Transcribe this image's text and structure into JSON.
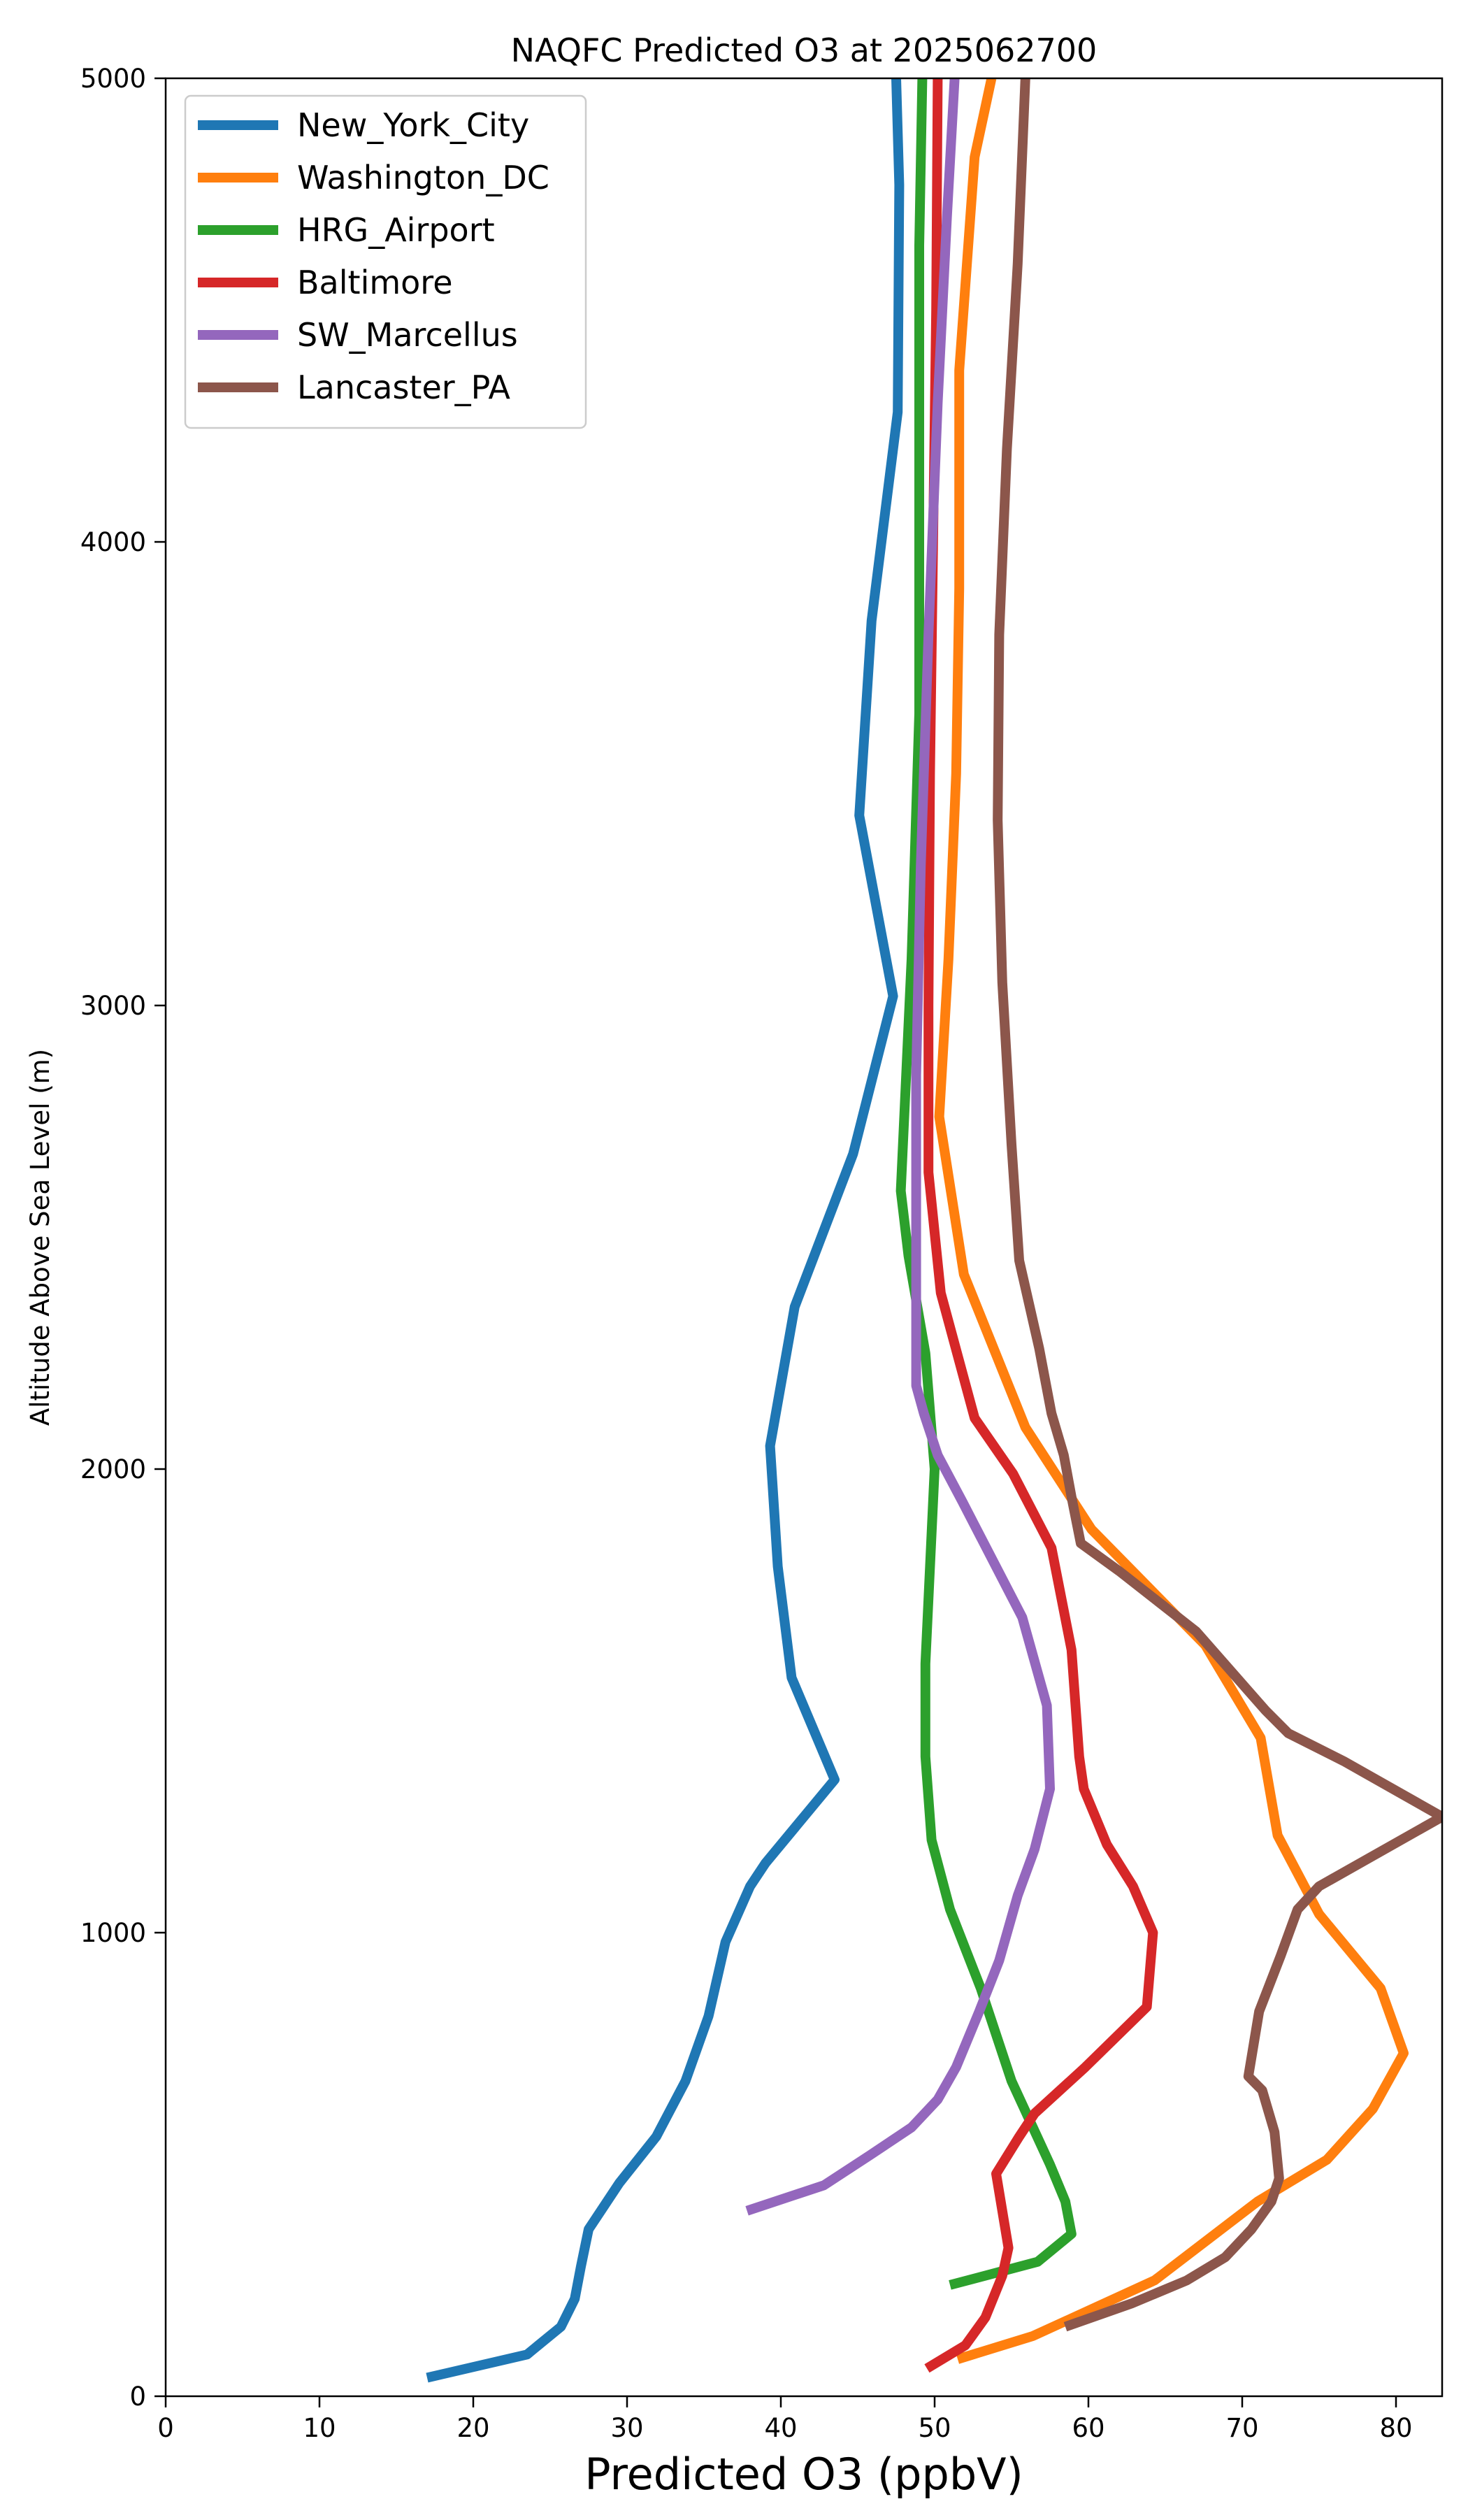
{
  "chart_data": {
    "type": "line",
    "title": "NAQFC Predicted O3 at 2025062700",
    "xlabel": "Predicted O3 (ppbV)",
    "ylabel": "Altitude Above Sea Level (m)",
    "xlim": [
      0,
      83
    ],
    "ylim": [
      0,
      5000
    ],
    "xticks": [
      0,
      10,
      20,
      30,
      40,
      50,
      60,
      70,
      80
    ],
    "yticks": [
      0,
      1000,
      2000,
      3000,
      4000,
      5000
    ],
    "grid": false,
    "legend_position": "top-left",
    "series": [
      {
        "name": "New_York_City",
        "color": "#1f77b4",
        "points": [
          [
            17,
            40
          ],
          [
            23.5,
            90
          ],
          [
            25.7,
            150
          ],
          [
            26.6,
            210
          ],
          [
            27,
            280
          ],
          [
            27.5,
            360
          ],
          [
            29.5,
            460
          ],
          [
            31.9,
            560
          ],
          [
            33.8,
            680
          ],
          [
            35.3,
            820
          ],
          [
            36.4,
            980
          ],
          [
            38,
            1100
          ],
          [
            39,
            1150
          ],
          [
            43.5,
            1330
          ],
          [
            40.7,
            1550
          ],
          [
            39.8,
            1790
          ],
          [
            39.3,
            2050
          ],
          [
            40.9,
            2350
          ],
          [
            44.7,
            2680
          ],
          [
            47.3,
            3020
          ],
          [
            45.1,
            3410
          ],
          [
            45.9,
            3830
          ],
          [
            47.6,
            4280
          ],
          [
            47.7,
            4770
          ],
          [
            47.5,
            5000
          ]
        ]
      },
      {
        "name": "Washington_DC",
        "color": "#ff7f0e",
        "points": [
          [
            51.5,
            80
          ],
          [
            56.4,
            130
          ],
          [
            64.3,
            250
          ],
          [
            71,
            420
          ],
          [
            75.5,
            510
          ],
          [
            78.5,
            620
          ],
          [
            80.5,
            740
          ],
          [
            79,
            880
          ],
          [
            75,
            1040
          ],
          [
            72.3,
            1210
          ],
          [
            71.2,
            1420
          ],
          [
            67.6,
            1620
          ],
          [
            60.2,
            1870
          ],
          [
            55.9,
            2090
          ],
          [
            51.9,
            2420
          ],
          [
            50.3,
            2760
          ],
          [
            50.9,
            3100
          ],
          [
            51.4,
            3500
          ],
          [
            51.6,
            3900
          ],
          [
            51.6,
            4370
          ],
          [
            52.6,
            4830
          ],
          [
            53.7,
            5000
          ]
        ]
      },
      {
        "name": "HRG_Airport",
        "color": "#2ca02c",
        "points": [
          [
            51,
            240
          ],
          [
            56.7,
            290
          ],
          [
            58.9,
            350
          ],
          [
            58.5,
            420
          ],
          [
            57.5,
            500
          ],
          [
            55,
            680
          ],
          [
            53,
            880
          ],
          [
            51,
            1050
          ],
          [
            49.8,
            1200
          ],
          [
            49.4,
            1380
          ],
          [
            49.4,
            1580
          ],
          [
            49.7,
            1790
          ],
          [
            50,
            2000
          ],
          [
            49.4,
            2250
          ],
          [
            48.3,
            2460
          ],
          [
            47.8,
            2600
          ],
          [
            48.5,
            3100
          ],
          [
            49,
            3630
          ],
          [
            49,
            4140
          ],
          [
            49,
            4640
          ],
          [
            49.2,
            5000
          ]
        ]
      },
      {
        "name": "Baltimore",
        "color": "#d62728",
        "points": [
          [
            49.5,
            60
          ],
          [
            52,
            110
          ],
          [
            53.3,
            170
          ],
          [
            54.4,
            260
          ],
          [
            54.8,
            320
          ],
          [
            54.5,
            380
          ],
          [
            54,
            480
          ],
          [
            55.5,
            560
          ],
          [
            56.5,
            610
          ],
          [
            59.8,
            710
          ],
          [
            63.8,
            840
          ],
          [
            64.2,
            1000
          ],
          [
            62.9,
            1100
          ],
          [
            61.2,
            1190
          ],
          [
            59.7,
            1310
          ],
          [
            59.4,
            1380
          ],
          [
            58.9,
            1610
          ],
          [
            57.6,
            1830
          ],
          [
            55.1,
            1990
          ],
          [
            52.6,
            2110
          ],
          [
            50.4,
            2380
          ],
          [
            49.6,
            2640
          ],
          [
            49.6,
            3000
          ],
          [
            49.7,
            3500
          ],
          [
            49.9,
            4000
          ],
          [
            50.1,
            4500
          ],
          [
            50.2,
            5000
          ]
        ]
      },
      {
        "name": "SW_Marcellus",
        "color": "#9467bd",
        "points": [
          [
            37.8,
            400
          ],
          [
            42.8,
            455
          ],
          [
            45.8,
            520
          ],
          [
            48.5,
            580
          ],
          [
            50.2,
            640
          ],
          [
            51.4,
            710
          ],
          [
            52.9,
            830
          ],
          [
            54.2,
            940
          ],
          [
            55.4,
            1080
          ],
          [
            56.5,
            1180
          ],
          [
            57.5,
            1310
          ],
          [
            57.3,
            1490
          ],
          [
            55.7,
            1680
          ],
          [
            51.8,
            1930
          ],
          [
            50.2,
            2030
          ],
          [
            49.3,
            2120
          ],
          [
            48.8,
            2180
          ],
          [
            48.8,
            2450
          ],
          [
            48.8,
            2850
          ],
          [
            49.1,
            3300
          ],
          [
            49.6,
            3800
          ],
          [
            50.2,
            4300
          ],
          [
            50.8,
            4700
          ],
          [
            51.3,
            5000
          ]
        ]
      },
      {
        "name": "Lancaster_PA",
        "color": "#8c564b",
        "points": [
          [
            58.5,
            150
          ],
          [
            62.8,
            200
          ],
          [
            66.4,
            250
          ],
          [
            68.9,
            300
          ],
          [
            70.6,
            360
          ],
          [
            71.9,
            420
          ],
          [
            72.4,
            470
          ],
          [
            72.1,
            570
          ],
          [
            71.3,
            660
          ],
          [
            70.4,
            690
          ],
          [
            71.1,
            830
          ],
          [
            72.5,
            950
          ],
          [
            73.6,
            1050
          ],
          [
            75,
            1100
          ],
          [
            83,
            1250
          ],
          [
            76.6,
            1370
          ],
          [
            73,
            1430
          ],
          [
            71.5,
            1480
          ],
          [
            67,
            1650
          ],
          [
            62,
            1780
          ],
          [
            59.5,
            1840
          ],
          [
            58.9,
            1940
          ],
          [
            58.4,
            2030
          ],
          [
            57.6,
            2120
          ],
          [
            56.8,
            2260
          ],
          [
            55.5,
            2450
          ],
          [
            55,
            2700
          ],
          [
            54.4,
            3050
          ],
          [
            54.1,
            3400
          ],
          [
            54.2,
            3800
          ],
          [
            54.7,
            4200
          ],
          [
            55.4,
            4600
          ],
          [
            55.9,
            5000
          ]
        ]
      }
    ]
  }
}
